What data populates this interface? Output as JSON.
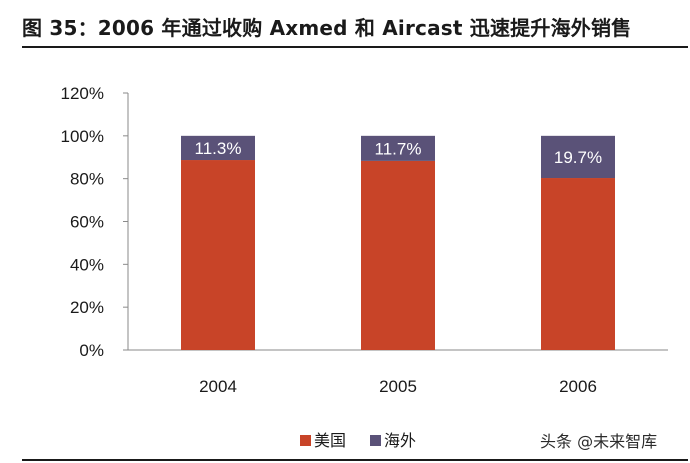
{
  "header": {
    "title": "图 35：2006 年通过收购 Axmed 和 Aircast 迅速提升海外销售"
  },
  "watermark": "头条 @未来智库",
  "chart_data": {
    "type": "bar",
    "stacked": true,
    "categories": [
      "2004",
      "2005",
      "2006"
    ],
    "series": [
      {
        "name": "美国",
        "values": [
          88.7,
          88.3,
          80.3
        ],
        "color": "#c84428"
      },
      {
        "name": "海外",
        "values": [
          11.3,
          11.7,
          19.7
        ],
        "color": "#5a5278"
      }
    ],
    "data_labels": [
      "11.3%",
      "11.7%",
      "19.7%"
    ],
    "y_ticks": [
      "0%",
      "20%",
      "40%",
      "60%",
      "80%",
      "100%",
      "120%"
    ],
    "ylim": [
      0,
      120
    ],
    "title": "",
    "xlabel": "",
    "ylabel": "",
    "grid": false,
    "legend_position": "bottom"
  }
}
